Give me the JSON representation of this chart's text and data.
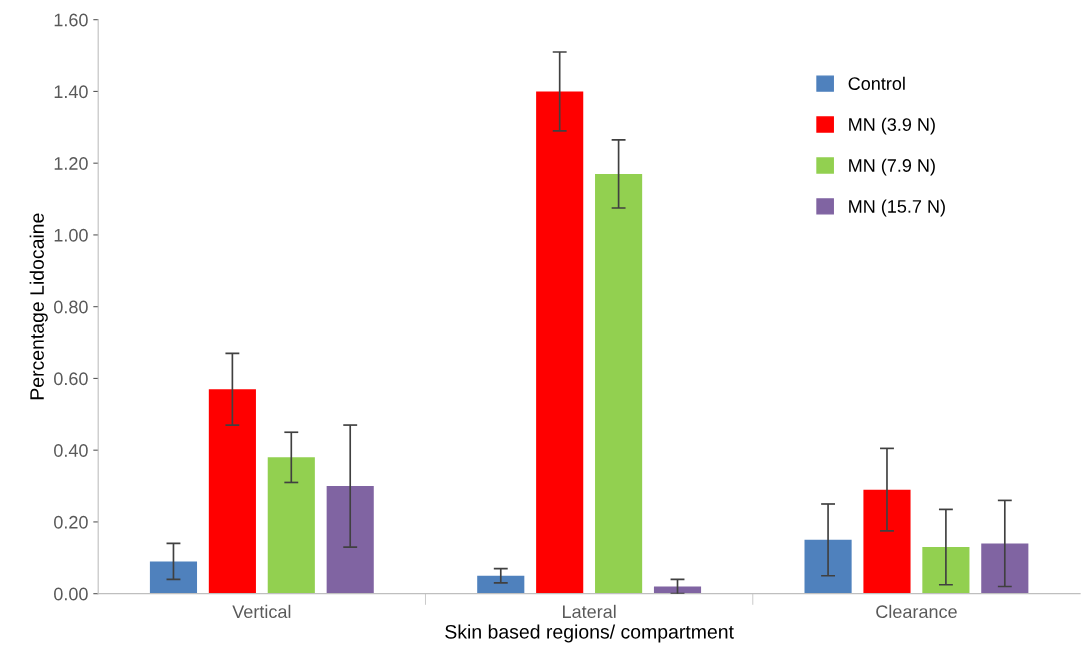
{
  "chart_data": {
    "type": "bar",
    "xlabel": "Skin based regions/ compartment",
    "ylabel": "Percentage Lidocaine",
    "categories": [
      "Vertical",
      "Lateral",
      "Clearance"
    ],
    "series": [
      {
        "name": "Control",
        "color": "#4f81bd",
        "values": [
          0.09,
          0.05,
          0.15
        ],
        "errors": [
          0.05,
          0.02,
          0.1
        ]
      },
      {
        "name": "MN (3.9 N)",
        "color": "#ff0000",
        "values": [
          0.57,
          1.4,
          0.29
        ],
        "errors": [
          0.1,
          0.11,
          0.115
        ]
      },
      {
        "name": "MN (7.9 N)",
        "color": "#92d050",
        "values": [
          0.38,
          1.17,
          0.13
        ],
        "errors": [
          0.07,
          0.095,
          0.105
        ]
      },
      {
        "name": "MN (15.7 N)",
        "color": "#8064a2",
        "values": [
          0.3,
          0.02,
          0.14
        ],
        "errors": [
          0.17,
          0.02,
          0.12
        ]
      }
    ],
    "ylim": [
      0,
      1.6
    ],
    "yticks": [
      {
        "value": 0,
        "label": "0.00"
      },
      {
        "value": 0.2,
        "label": "0.20"
      },
      {
        "value": 0.4,
        "label": "0.40"
      },
      {
        "value": 0.6,
        "label": "0.60"
      },
      {
        "value": 0.8,
        "label": "0.80"
      },
      {
        "value": 1.0,
        "label": "1.00"
      },
      {
        "value": 1.2,
        "label": "1.20"
      },
      {
        "value": 1.4,
        "label": "1.40"
      },
      {
        "value": 1.6,
        "label": "1.60"
      }
    ],
    "grid": false,
    "legend": "top right"
  }
}
